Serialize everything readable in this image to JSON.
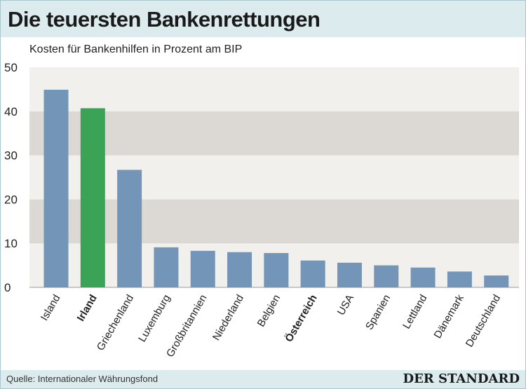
{
  "title": "Die teuersten Bankenrettungen",
  "footer": {
    "source": "Quelle: Internationaler Währungsfond",
    "brand": "DER STANDARD"
  },
  "colors": {
    "bar": "#7396b8",
    "highlight": "#3aa356",
    "band_dark": "#dcd8d3",
    "band_light": "#f1f0ec",
    "header": "#dcecee"
  },
  "chart_data": {
    "type": "bar",
    "subtitle": "Kosten für Bankenhilfen in Prozent am BIP",
    "categories": [
      "Island",
      "Irland",
      "Griechenland",
      "Luxemburg",
      "Großbritannien",
      "Niederland",
      "Belgien",
      "Österreich",
      "USA",
      "Spanien",
      "Lettland",
      "Dänemark",
      "Deutschland"
    ],
    "values": [
      44.9,
      40.7,
      26.7,
      9.1,
      8.3,
      8.0,
      7.8,
      6.1,
      5.6,
      5.0,
      4.5,
      3.6,
      2.7
    ],
    "highlight_category": "Irland",
    "bold_categories": [
      "Irland",
      "Österreich"
    ],
    "ylim": [
      0,
      50
    ],
    "yticks": [
      0,
      10,
      20,
      30,
      40,
      50
    ],
    "grid": "alternating horizontal bands",
    "legend": "none"
  }
}
